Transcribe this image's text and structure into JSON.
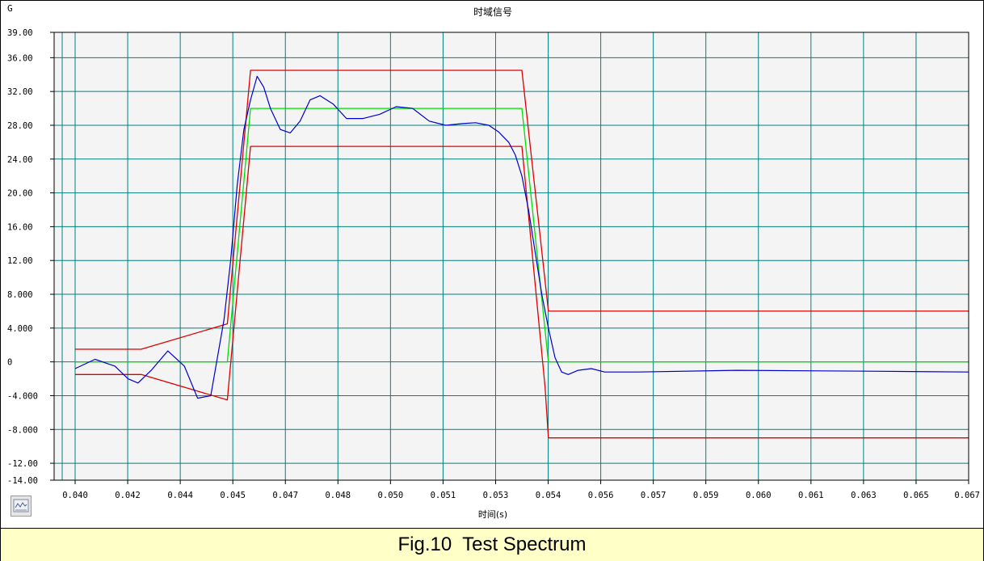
{
  "chart_data": {
    "type": "line",
    "title": "时域信号",
    "ylabel": "G",
    "xlabel": "时间(s)",
    "xlim": [
      0.04,
      0.067
    ],
    "ylim": [
      -14,
      39
    ],
    "x_tick_labels": [
      "0.040",
      "0.042",
      "0.044",
      "0.045",
      "0.047",
      "0.048",
      "0.050",
      "0.051",
      "0.053",
      "0.054",
      "0.056",
      "0.057",
      "0.059",
      "0.060",
      "0.061",
      "0.063",
      "0.065",
      "0.067"
    ],
    "y_ticks": [
      39,
      36,
      32,
      28,
      24,
      20,
      16,
      12,
      8,
      4,
      0,
      -4,
      -8,
      -12,
      -14
    ],
    "y_tick_labels": [
      "39.00",
      "36.00",
      "32.00",
      "28.00",
      "24.00",
      "20.00",
      "16.00",
      "12.00",
      "8.000",
      "4.000",
      "0",
      "-4.000",
      "-8.000",
      "-12.00",
      "-14.00"
    ],
    "grid": true,
    "series": [
      {
        "color": "#dd0000",
        "x": [
          0.04,
          0.042,
          0.0446,
          0.0453,
          0.0535,
          0.0543,
          0.067
        ],
        "y": [
          1.5,
          1.5,
          4.5,
          34.5,
          34.5,
          6.0,
          6.0
        ]
      },
      {
        "color": "#dd0000",
        "x": [
          0.04,
          0.042,
          0.0446,
          0.0453,
          0.0535,
          0.0542,
          0.0543,
          0.067
        ],
        "y": [
          -1.5,
          -1.5,
          -4.5,
          25.5,
          25.5,
          -3.0,
          -9.0,
          -9.0
        ]
      },
      {
        "color": "#00dd00",
        "x": [
          0.04,
          0.0446,
          0.0453,
          0.0535,
          0.0543,
          0.067
        ],
        "y": [
          0,
          0,
          30,
          30,
          0,
          0
        ]
      },
      {
        "color": "#0000cc",
        "x": [
          0.04,
          0.0406,
          0.0412,
          0.0416,
          0.0419,
          0.0423,
          0.0428,
          0.0433,
          0.0437,
          0.0441,
          0.0445,
          0.0447,
          0.0449,
          0.0451,
          0.0453,
          0.0455,
          0.0457,
          0.0459,
          0.0462,
          0.0465,
          0.0468,
          0.0471,
          0.0474,
          0.0478,
          0.0482,
          0.0487,
          0.0492,
          0.0497,
          0.0502,
          0.0507,
          0.0512,
          0.0517,
          0.0521,
          0.0525,
          0.0528,
          0.0531,
          0.0533,
          0.0535,
          0.0537,
          0.0539,
          0.0541,
          0.0543,
          0.0545,
          0.0547,
          0.0549,
          0.0552,
          0.0556,
          0.056,
          0.057,
          0.06,
          0.064,
          0.067
        ],
        "y": [
          -0.8,
          0.3,
          -0.5,
          -2.0,
          -2.5,
          -1.0,
          1.3,
          -0.5,
          -4.3,
          -4.0,
          5.0,
          12.0,
          21.0,
          27.5,
          31.0,
          33.8,
          32.5,
          30.0,
          27.5,
          27.1,
          28.5,
          31.0,
          31.5,
          30.5,
          28.8,
          28.8,
          29.3,
          30.2,
          30.0,
          28.5,
          28.0,
          28.2,
          28.3,
          28.0,
          27.2,
          26.0,
          24.5,
          22.0,
          18.0,
          13.0,
          8.0,
          4.0,
          0.5,
          -1.2,
          -1.5,
          -1.0,
          -0.8,
          -1.2,
          -1.2,
          -1.0,
          -1.1,
          -1.2
        ]
      }
    ],
    "legend_button_icon": "legend-icon"
  },
  "caption": "Fig.10  Test Spectrum"
}
